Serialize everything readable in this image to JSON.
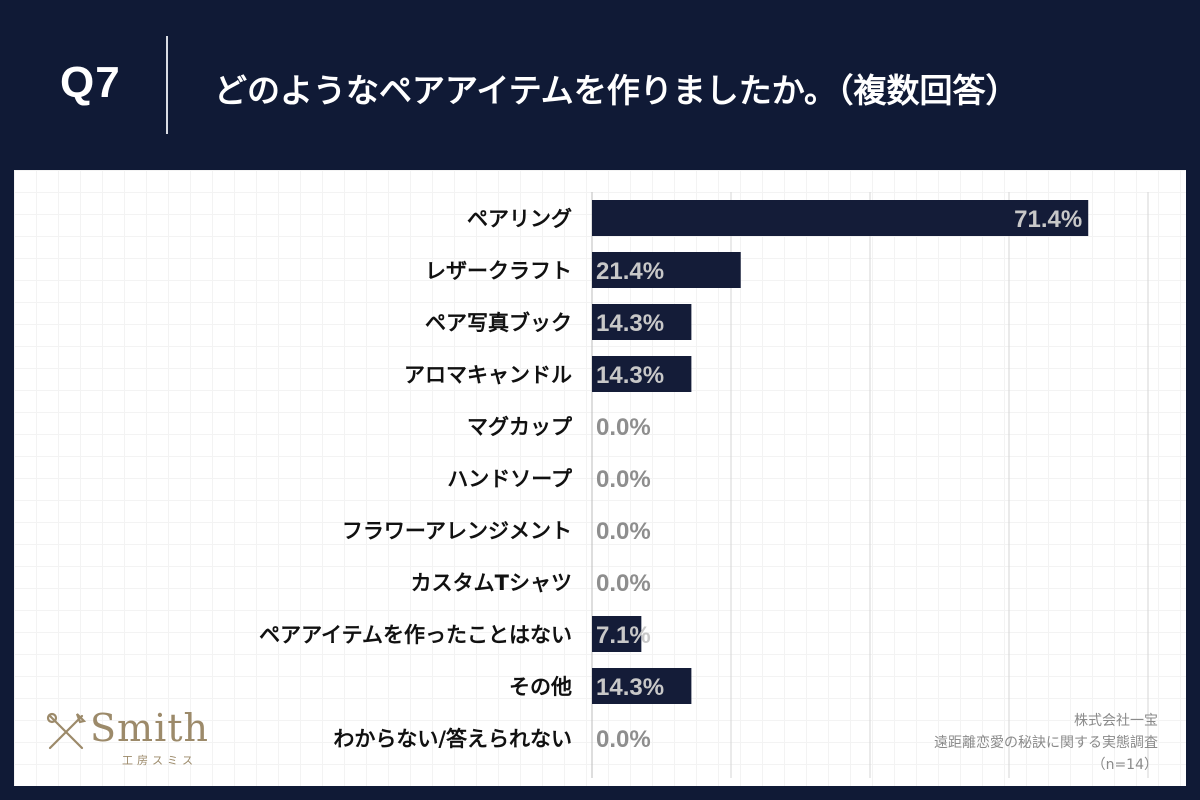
{
  "header": {
    "question": "Q7",
    "title": "どのようなペアアイテムを作りましたか。（複数回答）"
  },
  "colors": {
    "background": "#101a36",
    "bar": "#141c38",
    "label_inside": "#c8c8c8",
    "label_outside": "#8e8e8e"
  },
  "chart_data": {
    "type": "bar",
    "orientation": "horizontal",
    "categories": [
      "ペアリング",
      "レザークラフト",
      "ペア写真ブック",
      "アロマキャンドル",
      "マグカップ",
      "ハンドソープ",
      "フラワーアレンジメント",
      "カスタムTシャツ",
      "ペアアイテムを作ったことはない",
      "その他",
      "わからない/答えられない"
    ],
    "values": [
      71.4,
      21.4,
      14.3,
      14.3,
      0.0,
      0.0,
      0.0,
      0.0,
      7.1,
      14.3,
      0.0
    ],
    "value_labels": [
      "71.4%",
      "21.4%",
      "14.3%",
      "14.3%",
      "0.0%",
      "0.0%",
      "0.0%",
      "0.0%",
      "7.1%",
      "14.3%",
      "0.0%"
    ],
    "xlim": [
      0,
      100
    ],
    "grid": true
  },
  "logo": {
    "brand": "Smith",
    "sub": "工房スミス"
  },
  "source": {
    "company": "株式会社一宝",
    "survey": "遠距離恋愛の秘訣に関する実態調査",
    "sample": "（n=14）"
  }
}
